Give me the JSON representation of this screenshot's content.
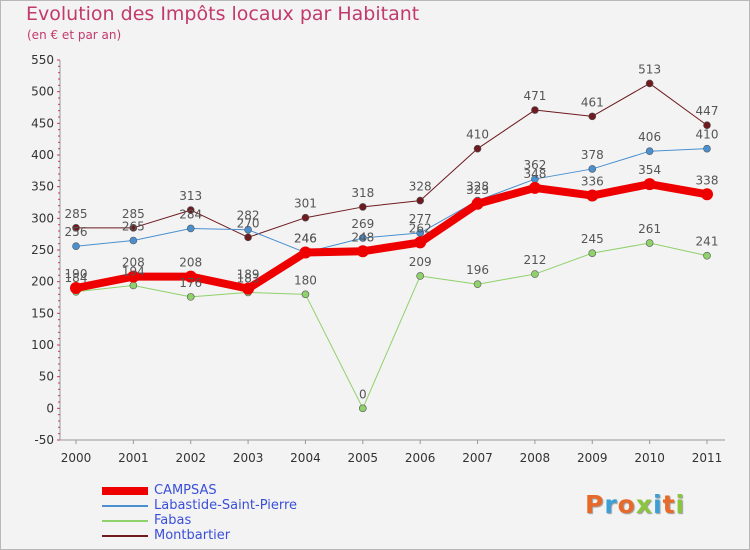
{
  "header": {
    "title": "Evolution des Impôts locaux par Habitant",
    "subtitle": "(en € et par an)"
  },
  "logo": {
    "text": "Proxiti",
    "letters": [
      {
        "ch": "P",
        "color": "#e86a2a"
      },
      {
        "ch": "r",
        "color": "#3aa0d8"
      },
      {
        "ch": "o",
        "color": "#e86a2a"
      },
      {
        "ch": "x",
        "color": "#8bc53f"
      },
      {
        "ch": "i",
        "color": "#3aa0d8"
      },
      {
        "ch": "t",
        "color": "#e86a2a"
      },
      {
        "ch": "i",
        "color": "#8bc53f"
      }
    ]
  },
  "chart_data": {
    "type": "line",
    "title": "Evolution des Impôts locaux par Habitant",
    "subtitle": "(en € et par an)",
    "xlabel": "",
    "ylabel": "",
    "categories": [
      "2000",
      "2001",
      "2002",
      "2003",
      "2004",
      "2005",
      "2006",
      "2007",
      "2008",
      "2009",
      "2010",
      "2011"
    ],
    "ylim": [
      -50,
      550
    ],
    "yticks": [
      -50,
      0,
      50,
      100,
      150,
      200,
      250,
      300,
      350,
      400,
      450,
      500,
      550
    ],
    "grid": false,
    "legend_position": "bottom-left",
    "series": [
      {
        "name": "Montbartier",
        "color": "#6e1a1f",
        "width": 1,
        "marker": 3,
        "values": [
          285,
          285,
          313,
          270,
          301,
          318,
          328,
          410,
          471,
          461,
          513,
          447
        ],
        "labels": [
          "285",
          "285",
          "313",
          "270",
          "301",
          "318",
          "328",
          "410",
          "471",
          "461",
          "513",
          "447"
        ]
      },
      {
        "name": "Labastide-Saint-Pierre",
        "color": "#4a90d0",
        "width": 1,
        "marker": 3,
        "values": [
          256,
          265,
          284,
          282,
          246,
          269,
          277,
          328,
          362,
          378,
          406,
          410
        ],
        "labels": [
          "256",
          "265",
          "284",
          "282",
          "246",
          "269",
          "277",
          "328",
          "362",
          "378",
          "406",
          "410"
        ]
      },
      {
        "name": "Fabas",
        "color": "#8fd16b",
        "width": 1,
        "marker": 3,
        "values": [
          184,
          194,
          176,
          183,
          180,
          0,
          209,
          196,
          212,
          245,
          261,
          241
        ],
        "labels": [
          "184",
          "194",
          "176",
          "183",
          "180",
          "0",
          "209",
          "196",
          "212",
          "245",
          "261",
          "241"
        ]
      },
      {
        "name": "CAMPSAS",
        "color": "#ee0000",
        "width": 8,
        "marker": 6,
        "values": [
          190,
          208,
          208,
          189,
          246,
          248,
          262,
          323,
          348,
          336,
          354,
          338
        ],
        "labels": [
          "190",
          "208",
          "208",
          "189",
          "246",
          "248",
          "262",
          "323",
          "348",
          "336",
          "354",
          "338"
        ]
      }
    ],
    "legend_order": [
      "CAMPSAS",
      "Labastide-Saint-Pierre",
      "Fabas",
      "Montbartier"
    ]
  }
}
